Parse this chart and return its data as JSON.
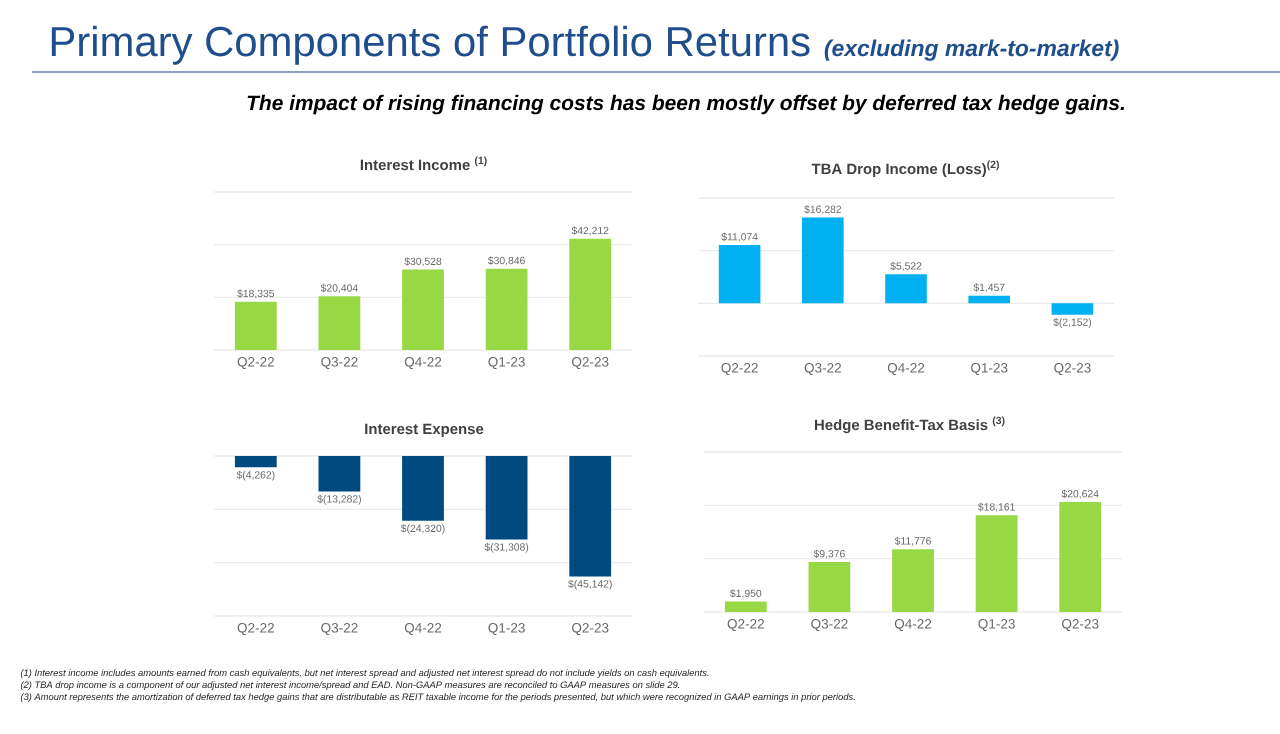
{
  "chart_data": [
    {
      "type": "other",
      "title": "Primary Components of Portfolio Returns",
      "subtitle": "(excluding mark-to-market)",
      "annotations": [
        "The impact of rising financing costs has been mostly offset by deferred tax hedge gains.",
        "(1) Interest income includes amounts earned from cash equivalents, but net interest spread and adjusted net interest spread do not include yields on cash equivalents.",
        "(2) TBA drop income is a component of our adjusted net interest income/spread and EAD. Non-GAAP measures are reconciled to GAAP measures on slide 29.",
        "(3) Amount represents the amortization of deferred tax hedge gains that are distributable as REIT taxable income for the periods presented, but which were recognized in GAAP earnings in prior periods."
      ]
    },
    {
      "type": "bar",
      "title": "Interest Income $^{(1)}$",
      "categories": [
        "Q2-22",
        "Q3-22",
        "Q4-22",
        "Q1-23",
        "Q2-23"
      ],
      "values": [
        18335,
        20404,
        30528,
        30846,
        42212
      ],
      "value_labels": [
        "$18,335",
        "$20,404",
        "$30,528",
        "$30,846",
        "$42,212"
      ],
      "color": "#99d845",
      "ylim": [
        0,
        60000
      ],
      "yticks": [
        {
          "value": 0,
          "label": null
        },
        {
          "value": 20000,
          "label": null
        },
        {
          "value": 40000,
          "label": null
        },
        {
          "value": 60000,
          "label": null
        }
      ],
      "grid": "y",
      "tick_labels": "x"
    },
    {
      "type": "bar",
      "title": "TBA Drop Income (Loss)$^{(2)}$",
      "categories": [
        "Q2-22",
        "Q3-22",
        "Q4-22",
        "Q1-23",
        "Q2-23"
      ],
      "values": [
        11074,
        16282,
        5522,
        1457,
        -2152
      ],
      "value_labels": [
        "$11,074",
        "$16,282",
        "$5,522",
        "$1,457",
        "$(2,152)"
      ],
      "color": "#00b0f0",
      "ylim": [
        -10000,
        20000
      ],
      "yticks": [
        {
          "value": -10000,
          "label": null
        },
        {
          "value": 0,
          "label": null
        },
        {
          "value": 10000,
          "label": null
        },
        {
          "value": 20000,
          "label": null
        }
      ],
      "grid": "y",
      "tick_labels": "x"
    },
    {
      "type": "bar",
      "title": "Interest Expense",
      "categories": [
        "Q2-22",
        "Q3-22",
        "Q4-22",
        "Q1-23",
        "Q2-23"
      ],
      "values": [
        -4262,
        -13282,
        -24320,
        -31308,
        -45142
      ],
      "value_labels": [
        "$(4,262)",
        "$(13,282)",
        "$(24,320)",
        "$(31,308)",
        "$(45,142)"
      ],
      "color": "#004a80",
      "ylim": [
        -60000,
        0
      ],
      "yticks": [
        {
          "value": -60000,
          "label": null
        },
        {
          "value": -40000,
          "label": null
        },
        {
          "value": -20000,
          "label": null
        },
        {
          "value": 0,
          "label": null
        }
      ],
      "grid": "y",
      "tick_labels": "x"
    },
    {
      "type": "bar",
      "title": "Hedge Benefit-Tax Basis $^{(3)}$",
      "categories": [
        "Q2-22",
        "Q3-22",
        "Q4-22",
        "Q1-23",
        "Q2-23"
      ],
      "values": [
        1950,
        9376,
        11776,
        18161,
        20624
      ],
      "value_labels": [
        "$1,950",
        "$9,376",
        "$11,776",
        "$18,161",
        "$20,624"
      ],
      "color": "#99d845",
      "ylim": [
        0,
        30000
      ],
      "yticks": [
        {
          "value": 0,
          "label": null
        },
        {
          "value": 10000,
          "label": null
        },
        {
          "value": 20000,
          "label": null
        },
        {
          "value": 30000,
          "label": null
        }
      ],
      "grid": "y",
      "tick_labels": "x"
    }
  ]
}
